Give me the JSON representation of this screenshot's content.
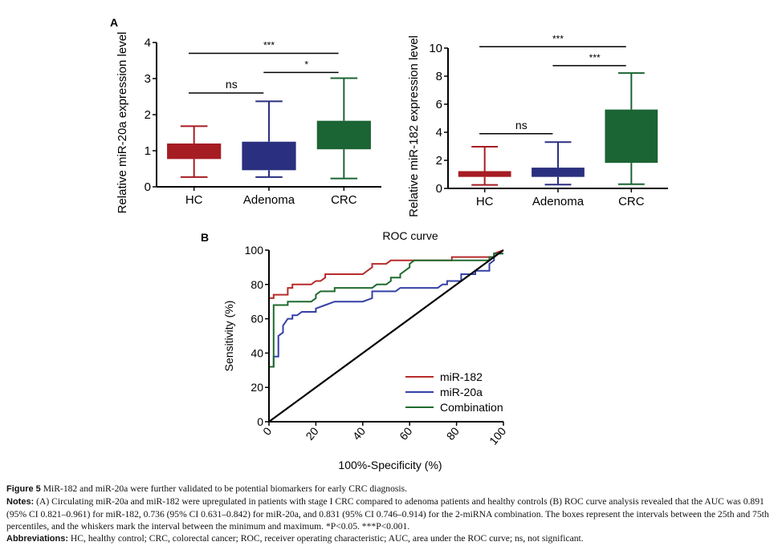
{
  "panels": {
    "A_label": "A",
    "B_label": "B"
  },
  "colors": {
    "HC": "#a61c23",
    "Adenoma": "#2a2f7f",
    "CRC": "#1b6434",
    "miR-182": "#b72b2b",
    "miR-20a": "#3441a5",
    "Combination": "#1f6b2e",
    "reference": "#000000"
  },
  "chart_data": [
    {
      "type": "box",
      "title": "",
      "ylabel": "Relative miR-20a expression level",
      "xlabel": "",
      "ylim": [
        0,
        4
      ],
      "yticks": [
        "0",
        "1",
        "2",
        "3",
        "4"
      ],
      "categories": [
        "HC",
        "Adenoma",
        "CRC"
      ],
      "boxes": [
        {
          "name": "HC",
          "min": 0.27,
          "q1": 0.77,
          "q3": 1.2,
          "max": 1.68
        },
        {
          "name": "Adenoma",
          "min": 0.27,
          "q1": 0.46,
          "q3": 1.25,
          "max": 2.37
        },
        {
          "name": "CRC",
          "min": 0.23,
          "q1": 1.04,
          "q3": 1.83,
          "max": 3.01
        }
      ],
      "annotations": [
        {
          "from": "HC",
          "to": "Adenoma",
          "y": 2.6,
          "label": "ns"
        },
        {
          "from": "Adenoma",
          "to": "CRC",
          "y": 3.17,
          "label": "*"
        },
        {
          "from": "HC",
          "to": "CRC",
          "y": 3.7,
          "label": "***"
        }
      ]
    },
    {
      "type": "box",
      "title": "",
      "ylabel": "Relative miR-182 expression level",
      "xlabel": "",
      "ylim": [
        0,
        10
      ],
      "yticks": [
        "0",
        "2",
        "4",
        "6",
        "8",
        "10"
      ],
      "categories": [
        "HC",
        "Adenoma",
        "CRC"
      ],
      "boxes": [
        {
          "name": "HC",
          "min": 0.25,
          "q1": 0.82,
          "q3": 1.23,
          "max": 2.97
        },
        {
          "name": "Adenoma",
          "min": 0.27,
          "q1": 0.82,
          "q3": 1.48,
          "max": 3.3
        },
        {
          "name": "CRC",
          "min": 0.3,
          "q1": 1.82,
          "q3": 5.62,
          "max": 8.22
        }
      ],
      "annotations": [
        {
          "from": "HC",
          "to": "Adenoma",
          "y": 3.9,
          "label": "ns"
        },
        {
          "from": "Adenoma",
          "to": "CRC",
          "y": 8.75,
          "label": "***"
        },
        {
          "from": "HC",
          "to": "CRC",
          "y": 10.1,
          "label": "***"
        }
      ]
    },
    {
      "type": "line",
      "title": "ROC curve",
      "xlabel": "100%-Specificity (%)",
      "ylabel": "Sensitivity (%)",
      "xlim": [
        0,
        100
      ],
      "ylim": [
        0,
        100
      ],
      "xticks": [
        "0",
        "20",
        "40",
        "60",
        "80",
        "100"
      ],
      "yticks": [
        "0",
        "20",
        "40",
        "60",
        "80",
        "100"
      ],
      "legend_position": "bottom-right",
      "series": [
        {
          "name": "miR-182",
          "points": [
            [
              0,
              0
            ],
            [
              0,
              32
            ],
            [
              0,
              72
            ],
            [
              2,
              72
            ],
            [
              2,
              74
            ],
            [
              8,
              74
            ],
            [
              8,
              78
            ],
            [
              10,
              78
            ],
            [
              10,
              80
            ],
            [
              18,
              80
            ],
            [
              20,
              82
            ],
            [
              22,
              82
            ],
            [
              24,
              84
            ],
            [
              24,
              86
            ],
            [
              40,
              86
            ],
            [
              42,
              88
            ],
            [
              44,
              90
            ],
            [
              44,
              92
            ],
            [
              50,
              92
            ],
            [
              52,
              94
            ],
            [
              78,
              94
            ],
            [
              78,
              96
            ],
            [
              80,
              96
            ],
            [
              80,
              96
            ],
            [
              96,
              96
            ],
            [
              96,
              98
            ],
            [
              100,
              100
            ]
          ]
        },
        {
          "name": "miR-20a",
          "points": [
            [
              0,
              0
            ],
            [
              0,
              32
            ],
            [
              2,
              32
            ],
            [
              2,
              38
            ],
            [
              4,
              38
            ],
            [
              4,
              50
            ],
            [
              6,
              52
            ],
            [
              6,
              56
            ],
            [
              8,
              60
            ],
            [
              10,
              60
            ],
            [
              10,
              62
            ],
            [
              12,
              62
            ],
            [
              14,
              64
            ],
            [
              20,
              64
            ],
            [
              20,
              66
            ],
            [
              24,
              68
            ],
            [
              28,
              70
            ],
            [
              40,
              70
            ],
            [
              44,
              72
            ],
            [
              44,
              76
            ],
            [
              54,
              76
            ],
            [
              56,
              78
            ],
            [
              72,
              78
            ],
            [
              74,
              80
            ],
            [
              76,
              80
            ],
            [
              76,
              82
            ],
            [
              82,
              82
            ],
            [
              82,
              86
            ],
            [
              88,
              86
            ],
            [
              88,
              88
            ],
            [
              94,
              88
            ],
            [
              94,
              92
            ],
            [
              96,
              94
            ],
            [
              96,
              98
            ],
            [
              100,
              98
            ]
          ]
        },
        {
          "name": "Combination",
          "points": [
            [
              0,
              0
            ],
            [
              0,
              32
            ],
            [
              2,
              32
            ],
            [
              2,
              68
            ],
            [
              8,
              68
            ],
            [
              8,
              70
            ],
            [
              18,
              70
            ],
            [
              20,
              72
            ],
            [
              20,
              74
            ],
            [
              22,
              76
            ],
            [
              28,
              76
            ],
            [
              28,
              78
            ],
            [
              44,
              78
            ],
            [
              46,
              80
            ],
            [
              50,
              80
            ],
            [
              52,
              82
            ],
            [
              52,
              84
            ],
            [
              56,
              84
            ],
            [
              56,
              86
            ],
            [
              58,
              88
            ],
            [
              60,
              90
            ],
            [
              60,
              92
            ],
            [
              62,
              94
            ],
            [
              94,
              94
            ],
            [
              94,
              96
            ],
            [
              96,
              96
            ],
            [
              96,
              98
            ],
            [
              100,
              98
            ]
          ]
        },
        {
          "name": "Reference",
          "points": [
            [
              0,
              0
            ],
            [
              100,
              100
            ]
          ]
        }
      ]
    }
  ],
  "caption": {
    "figure_label": "Figure 5",
    "figure_text": "MiR-182 and miR-20a were further validated to be potential biomarkers for early CRC diagnosis.",
    "notes_label": "Notes:",
    "notes_text_1": "(A) Circulating miR-20a and miR-182 were upregulated in patients with stage I CRC compared to adenoma patients and healthy controls (B) ROC curve analysis revealed that the AUC was 0.891 (95% CI 0.821–0.961) for miR-182, 0.736 (95% CI 0.631–0.842) for miR-20a, and 0.831 (95% CI 0.746–0.914) for the 2-miRNA combination. The boxes represent the intervals between the 25th and 75th percentiles, and the whiskers mark the interval between the minimum and maximum. *P<0.05. ***P<0.001.",
    "abbrev_label": "Abbreviations:",
    "abbrev_text": "HC, healthy control; CRC, colorectal cancer; ROC, receiver operating characteristic; AUC, area under the ROC curve; ns, not significant."
  }
}
